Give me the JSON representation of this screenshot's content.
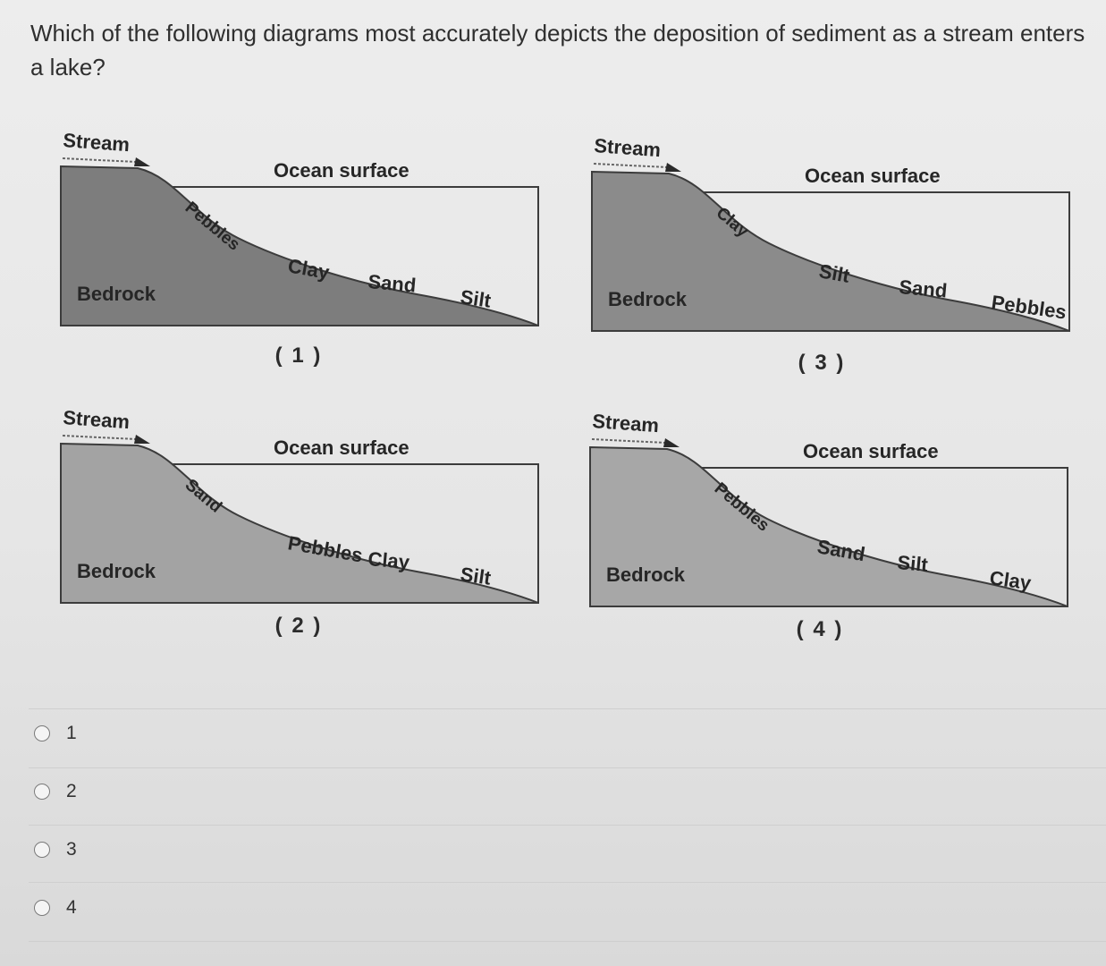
{
  "question": "Which of the following diagrams most accurately depicts the deposition of sediment as a stream enters a lake?",
  "diagram_common": {
    "stream_label": "Stream",
    "surface_label": "Ocean surface",
    "bedrock_label": "Bedrock"
  },
  "diagrams": [
    {
      "number": "( 1 )",
      "sediments": [
        "Pebbles",
        "Clay",
        "Sand",
        "Silt"
      ],
      "shade": "#7d7d7d"
    },
    {
      "number": "( 2 )",
      "sediments": [
        "Sand",
        "Pebbles",
        "Clay",
        "Silt"
      ],
      "shade": "#a3a3a3"
    },
    {
      "number": "( 3 )",
      "sediments": [
        "Clay",
        "Silt",
        "Sand",
        "Pebbles"
      ],
      "shade": "#8b8b8b"
    },
    {
      "number": "( 4 )",
      "sediments": [
        "Pebbles",
        "Sand",
        "Silt",
        "Clay"
      ],
      "shade": "#a7a7a7"
    }
  ],
  "options": [
    {
      "label": "1"
    },
    {
      "label": "2"
    },
    {
      "label": "3"
    },
    {
      "label": "4"
    }
  ]
}
